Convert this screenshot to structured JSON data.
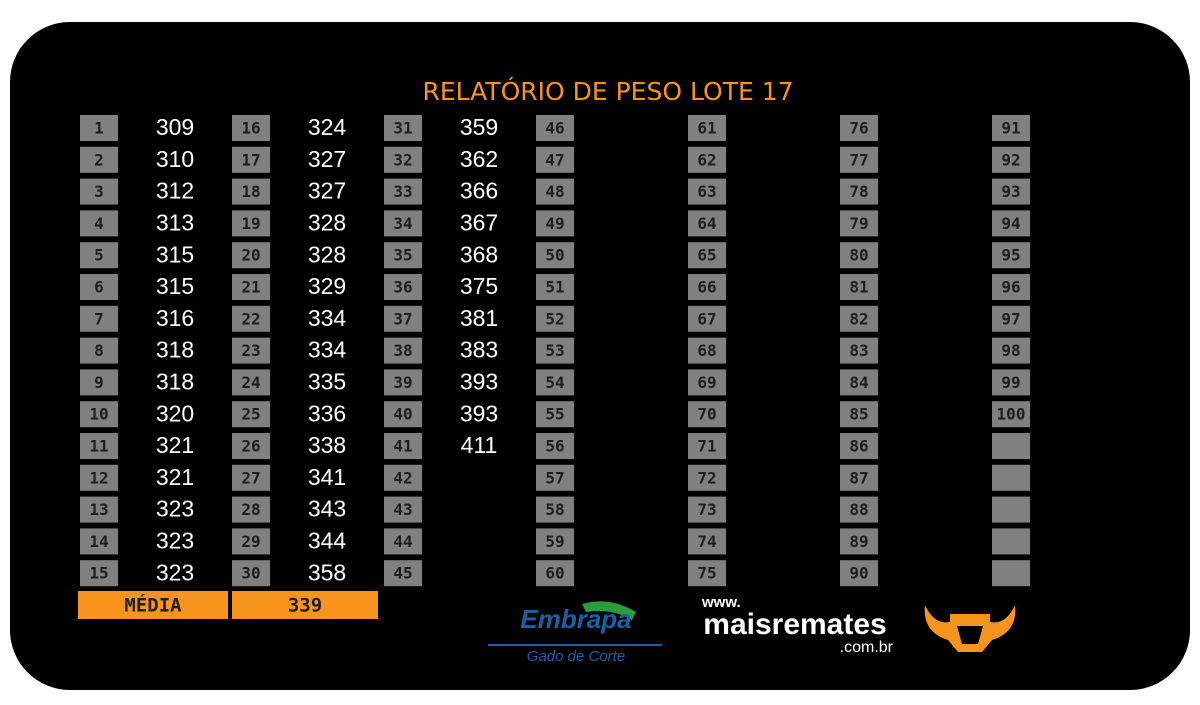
{
  "header": {
    "title": "RELATÓRIO DE PESO LOTE 17"
  },
  "table": {
    "columns": [
      {
        "index": [
          1,
          2,
          3,
          4,
          5,
          6,
          7,
          8,
          9,
          10,
          11,
          12,
          13,
          14,
          15
        ],
        "weights": [
          309,
          310,
          312,
          313,
          315,
          315,
          316,
          318,
          318,
          320,
          321,
          321,
          323,
          323,
          323
        ]
      },
      {
        "index": [
          16,
          17,
          18,
          19,
          20,
          21,
          22,
          23,
          24,
          25,
          26,
          27,
          28,
          29,
          30
        ],
        "weights": [
          324,
          327,
          327,
          328,
          328,
          329,
          334,
          334,
          335,
          336,
          338,
          341,
          343,
          344,
          358
        ]
      },
      {
        "index": [
          31,
          32,
          33,
          34,
          35,
          36,
          37,
          38,
          39,
          40,
          41,
          42,
          43,
          44,
          45
        ],
        "weights": [
          359,
          362,
          366,
          367,
          368,
          375,
          381,
          383,
          393,
          393,
          411
        ]
      },
      {
        "index": [
          46,
          47,
          48,
          49,
          50,
          51,
          52,
          53,
          54,
          55,
          56,
          57,
          58,
          59,
          60
        ],
        "weights": []
      },
      {
        "index": [
          61,
          62,
          63,
          64,
          65,
          66,
          67,
          68,
          69,
          70,
          71,
          72,
          73,
          74,
          75
        ],
        "weights": []
      },
      {
        "index": [
          76,
          77,
          78,
          79,
          80,
          81,
          82,
          83,
          84,
          85,
          86,
          87,
          88,
          89,
          90
        ],
        "weights": []
      },
      {
        "index": [
          91,
          92,
          93,
          94,
          95,
          96,
          97,
          98,
          99,
          100,
          null,
          null,
          null,
          null,
          null
        ],
        "weights": []
      }
    ],
    "average": {
      "label": "MÉDIA",
      "value": 339
    }
  },
  "logos": {
    "embrapa": "Embrapa",
    "embrapa_sub": "Gado de Corte",
    "www": "www.",
    "site": "maisremates",
    "domain": ".com.br"
  }
}
